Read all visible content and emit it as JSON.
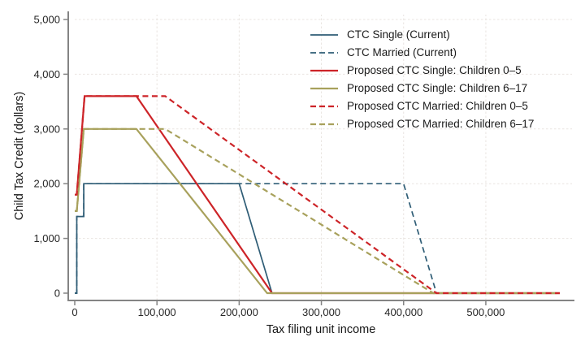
{
  "figure": {
    "background": "#ffffff",
    "axis_color": "#848484",
    "grid_color": "#e9e4e0",
    "text_color": "#262626"
  },
  "chart_data": {
    "type": "line",
    "title": "",
    "xlabel": "Tax filing unit income",
    "ylabel": "Child Tax Credit (dollars)",
    "xlim": [
      0,
      590000
    ],
    "ylim": [
      0,
      5000
    ],
    "grid": true,
    "legend_position": "top-right",
    "x_ticks": [
      0,
      100000,
      200000,
      300000,
      400000,
      500000
    ],
    "x_tick_labels": [
      "0",
      "100,000",
      "200,000",
      "300,000",
      "400,000",
      "500,000"
    ],
    "y_ticks": [
      0,
      1000,
      2000,
      3000,
      4000,
      5000
    ],
    "y_tick_labels": [
      "0",
      "1,000",
      "2,000",
      "3,000",
      "4,000",
      "5,000"
    ],
    "series": [
      {
        "name": "CTC Single (Current)",
        "color": "#2f5d76",
        "dash": "solid",
        "width": 1.7,
        "points": [
          [
            0,
            0
          ],
          [
            2500,
            0
          ],
          [
            2500,
            1400
          ],
          [
            11000,
            1400
          ],
          [
            11000,
            2000
          ],
          [
            200000,
            2000
          ],
          [
            240000,
            0
          ],
          [
            590000,
            0
          ]
        ]
      },
      {
        "name": "CTC Married (Current)",
        "color": "#2f5d76",
        "dash": "dashed",
        "width": 1.7,
        "points": [
          [
            0,
            0
          ],
          [
            2500,
            0
          ],
          [
            2500,
            1400
          ],
          [
            11000,
            1400
          ],
          [
            11000,
            2000
          ],
          [
            400000,
            2000
          ],
          [
            440000,
            0
          ],
          [
            590000,
            0
          ]
        ]
      },
      {
        "name": "Proposed CTC Single: Children 0–5",
        "color": "#cd2428",
        "dash": "solid",
        "width": 2.2,
        "points": [
          [
            0,
            1800
          ],
          [
            2500,
            1800
          ],
          [
            12000,
            3600
          ],
          [
            75000,
            3600
          ],
          [
            240000,
            0
          ],
          [
            590000,
            0
          ]
        ]
      },
      {
        "name": "Proposed CTC Single: Children 6–17",
        "color": "#a8a15c",
        "dash": "solid",
        "width": 2.2,
        "points": [
          [
            0,
            1500
          ],
          [
            2500,
            1500
          ],
          [
            11000,
            3000
          ],
          [
            75000,
            3000
          ],
          [
            234000,
            0
          ],
          [
            590000,
            0
          ]
        ]
      },
      {
        "name": "Proposed CTC Married: Children 6–17",
        "color": "#a8a15c",
        "dash": "dashed",
        "width": 2.2,
        "points": [
          [
            0,
            1500
          ],
          [
            2500,
            1500
          ],
          [
            11000,
            3000
          ],
          [
            110000,
            3000
          ],
          [
            436000,
            0
          ],
          [
            590000,
            0
          ]
        ]
      },
      {
        "name": "Proposed CTC Married: Children 0–5",
        "color": "#cd2428",
        "dash": "dashed",
        "width": 2.2,
        "points": [
          [
            0,
            1800
          ],
          [
            2500,
            1800
          ],
          [
            12000,
            3600
          ],
          [
            110000,
            3600
          ],
          [
            440000,
            0
          ],
          [
            590000,
            0
          ]
        ]
      }
    ],
    "legend_order": [
      0,
      1,
      2,
      3,
      5,
      4
    ]
  }
}
